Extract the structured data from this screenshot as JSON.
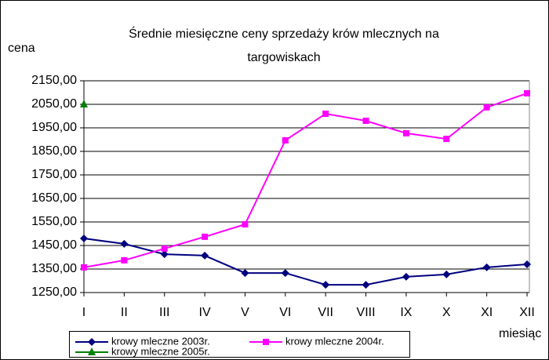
{
  "chart_data": {
    "type": "line",
    "title": [
      "Średnie miesięczne ceny sprzedaży krów mlecznych na",
      "targowiskach"
    ],
    "y_label": "cena",
    "x_label": "miesiąc",
    "categories": [
      "I",
      "II",
      "III",
      "IV",
      "V",
      "VI",
      "VII",
      "VIII",
      "IX",
      "X",
      "XI",
      "XII"
    ],
    "series": [
      {
        "name": "krowy mleczne 2003r.",
        "color": "#000080",
        "marker": "diamond",
        "values": [
          1480,
          1457,
          1413,
          1407,
          1333,
          1333,
          1283,
          1283,
          1317,
          1327,
          1357,
          1370
        ]
      },
      {
        "name": "krowy mleczne 2004r.",
        "color": "#ff00ff",
        "marker": "square",
        "values": [
          1357,
          1387,
          1437,
          1487,
          1540,
          1897,
          2010,
          1980,
          1927,
          1903,
          2037,
          2097
        ]
      },
      {
        "name": "krowy mleczne 2005r.",
        "color": "#008000",
        "marker": "triangle",
        "values": [
          2050,
          null,
          null,
          null,
          null,
          null,
          null,
          null,
          null,
          null,
          null,
          null
        ]
      }
    ],
    "ylim": [
      1250,
      2150
    ],
    "yticks": [
      {
        "value": 1250,
        "label": "1250,00"
      },
      {
        "value": 1350,
        "label": "1350,00"
      },
      {
        "value": 1450,
        "label": "1450,00"
      },
      {
        "value": 1550,
        "label": "1550,00"
      },
      {
        "value": 1650,
        "label": "1650,00"
      },
      {
        "value": 1750,
        "label": "1750,00"
      },
      {
        "value": 1850,
        "label": "1850,00"
      },
      {
        "value": 1950,
        "label": "1950,00"
      },
      {
        "value": 2050,
        "label": "2050,00"
      },
      {
        "value": 2150,
        "label": "2150,00"
      }
    ],
    "grid": true,
    "legend": "bottom"
  }
}
